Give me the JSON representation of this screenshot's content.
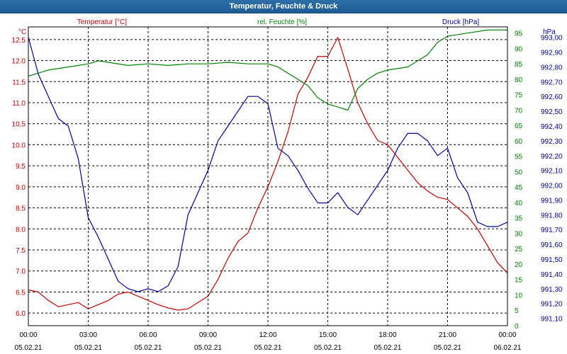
{
  "window": {
    "title": "Temperatur, Feuchte & Druck"
  },
  "colors": {
    "temperature": "#c00000",
    "humidity": "#008000",
    "pressure": "#000099",
    "titlebar": "#1f5f99"
  },
  "chart_data": {
    "type": "line",
    "title": "Temperatur, Feuchte & Druck",
    "x_ticks": [
      {
        "time": "00:00",
        "date": "05.02.21"
      },
      {
        "time": "03:00",
        "date": "05.02.21"
      },
      {
        "time": "06:00",
        "date": "05.02.21"
      },
      {
        "time": "09:00",
        "date": "05.02.21"
      },
      {
        "time": "12:00",
        "date": "05.02.21"
      },
      {
        "time": "15:00",
        "date": "05.02.21"
      },
      {
        "time": "18:00",
        "date": "05.02.21"
      },
      {
        "time": "21:00",
        "date": "05.02.21"
      },
      {
        "time": "00:00",
        "date": "06.02.21"
      }
    ],
    "x_range_hours": [
      0,
      24
    ],
    "axes": {
      "temperature": {
        "label": "Temperatur [°C]",
        "unit": "°C",
        "range": [
          5.7,
          12.8
        ],
        "ticks": [
          "6.0",
          "6.5",
          "7.0",
          "7.5",
          "8.0",
          "8.5",
          "9.0",
          "9.5",
          "10.0",
          "10.5",
          "11.0",
          "11.5",
          "12.0",
          "12.5"
        ]
      },
      "humidity": {
        "label": "rel. Feuchte [%]",
        "unit": "%",
        "range": [
          0,
          97
        ],
        "ticks": [
          "0",
          "5",
          "10",
          "15",
          "20",
          "25",
          "30",
          "35",
          "40",
          "45",
          "50",
          "55",
          "60",
          "65",
          "70",
          "75",
          "80",
          "85",
          "90",
          "95"
        ]
      },
      "pressure": {
        "label": "Druck [hPa]",
        "unit": "hPa",
        "range": [
          991.05,
          993.07
        ],
        "ticks": [
          "991,10",
          "991,20",
          "991,30",
          "991,40",
          "991,50",
          "991,60",
          "991,70",
          "991,80",
          "991,90",
          "992,00",
          "992,10",
          "992,20",
          "992,30",
          "992,40",
          "992,50",
          "992,60",
          "992,70",
          "992,80",
          "992,90",
          "993,00"
        ]
      }
    },
    "series": [
      {
        "name": "Temperatur",
        "axis": "temperature",
        "color": "#c00000",
        "points": [
          [
            0,
            6.55
          ],
          [
            0.5,
            6.5
          ],
          [
            1,
            6.3
          ],
          [
            1.5,
            6.15
          ],
          [
            2,
            6.2
          ],
          [
            2.5,
            6.25
          ],
          [
            3,
            6.1
          ],
          [
            3.5,
            6.2
          ],
          [
            4,
            6.3
          ],
          [
            4.5,
            6.45
          ],
          [
            5,
            6.5
          ],
          [
            5.5,
            6.4
          ],
          [
            6,
            6.3
          ],
          [
            6.5,
            6.2
          ],
          [
            7,
            6.12
          ],
          [
            7.5,
            6.07
          ],
          [
            8,
            6.1
          ],
          [
            8.5,
            6.25
          ],
          [
            9,
            6.4
          ],
          [
            9.5,
            6.8
          ],
          [
            10,
            7.3
          ],
          [
            10.5,
            7.7
          ],
          [
            11,
            7.9
          ],
          [
            11.5,
            8.5
          ],
          [
            12,
            9.0
          ],
          [
            12.5,
            9.6
          ],
          [
            13,
            10.3
          ],
          [
            13.5,
            11.2
          ],
          [
            14,
            11.6
          ],
          [
            14.5,
            12.1
          ],
          [
            15,
            12.1
          ],
          [
            15.5,
            12.55
          ],
          [
            16,
            11.8
          ],
          [
            16.5,
            11.0
          ],
          [
            17,
            10.5
          ],
          [
            17.5,
            10.1
          ],
          [
            18,
            10.0
          ],
          [
            18.5,
            9.7
          ],
          [
            19,
            9.4
          ],
          [
            19.5,
            9.1
          ],
          [
            20,
            8.9
          ],
          [
            20.5,
            8.75
          ],
          [
            21,
            8.7
          ],
          [
            21.5,
            8.5
          ],
          [
            22,
            8.3
          ],
          [
            22.5,
            8.0
          ],
          [
            23,
            7.6
          ],
          [
            23.5,
            7.2
          ],
          [
            24,
            6.95
          ]
        ]
      },
      {
        "name": "rel. Feuchte",
        "axis": "humidity",
        "color": "#008000",
        "points": [
          [
            0,
            81
          ],
          [
            1,
            83
          ],
          [
            2,
            84
          ],
          [
            3,
            85
          ],
          [
            3.5,
            86
          ],
          [
            4,
            85.5
          ],
          [
            5,
            84.5
          ],
          [
            6,
            85
          ],
          [
            7,
            84.5
          ],
          [
            8,
            85
          ],
          [
            9,
            85
          ],
          [
            10,
            85.5
          ],
          [
            11,
            85
          ],
          [
            12,
            85
          ],
          [
            12.5,
            84
          ],
          [
            13,
            82
          ],
          [
            14,
            78
          ],
          [
            14.5,
            74
          ],
          [
            15,
            72
          ],
          [
            15.5,
            71
          ],
          [
            16,
            70
          ],
          [
            16.5,
            77
          ],
          [
            17,
            80
          ],
          [
            17.5,
            82
          ],
          [
            18,
            83
          ],
          [
            19,
            84
          ],
          [
            20,
            88
          ],
          [
            20.5,
            92
          ],
          [
            21,
            94
          ],
          [
            22,
            95
          ],
          [
            23,
            96
          ],
          [
            24,
            96
          ]
        ]
      },
      {
        "name": "Druck",
        "axis": "pressure",
        "color": "#000099",
        "points": [
          [
            0,
            993.0
          ],
          [
            0.5,
            992.75
          ],
          [
            1,
            992.6
          ],
          [
            1.5,
            992.45
          ],
          [
            2,
            992.4
          ],
          [
            2.5,
            992.18
          ],
          [
            3,
            991.78
          ],
          [
            3.5,
            991.65
          ],
          [
            4,
            991.5
          ],
          [
            4.5,
            991.35
          ],
          [
            5,
            991.3
          ],
          [
            5.5,
            991.28
          ],
          [
            6,
            991.3
          ],
          [
            6.5,
            991.28
          ],
          [
            7,
            991.32
          ],
          [
            7.5,
            991.45
          ],
          [
            8,
            991.8
          ],
          [
            8.5,
            991.95
          ],
          [
            9,
            992.1
          ],
          [
            9.5,
            992.3
          ],
          [
            10,
            992.4
          ],
          [
            10.5,
            992.5
          ],
          [
            11,
            992.6
          ],
          [
            11.5,
            992.6
          ],
          [
            12,
            992.55
          ],
          [
            12.5,
            992.25
          ],
          [
            13,
            992.2
          ],
          [
            13.5,
            992.1
          ],
          [
            14,
            991.98
          ],
          [
            14.5,
            991.88
          ],
          [
            15,
            991.88
          ],
          [
            15.5,
            991.95
          ],
          [
            16,
            991.85
          ],
          [
            16.5,
            991.8
          ],
          [
            17,
            991.9
          ],
          [
            17.5,
            992.0
          ],
          [
            18,
            992.1
          ],
          [
            18.5,
            992.25
          ],
          [
            19,
            992.35
          ],
          [
            19.5,
            992.35
          ],
          [
            20,
            992.3
          ],
          [
            20.5,
            992.2
          ],
          [
            21,
            992.25
          ],
          [
            21.5,
            992.05
          ],
          [
            22,
            991.95
          ],
          [
            22.5,
            991.75
          ],
          [
            23,
            991.72
          ],
          [
            23.5,
            991.72
          ],
          [
            24,
            991.75
          ]
        ]
      }
    ]
  }
}
